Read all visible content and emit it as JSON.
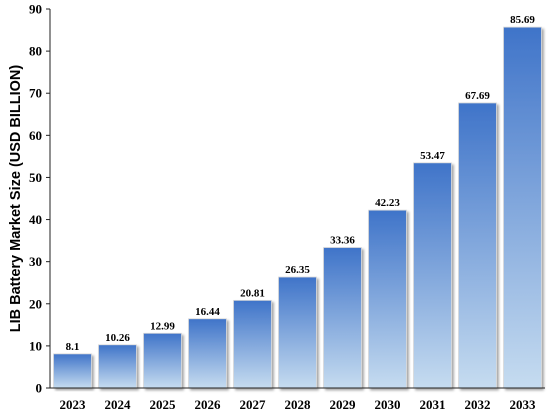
{
  "chart_data": {
    "type": "bar",
    "title": "",
    "xlabel": "",
    "ylabel": "LIB Battery Market Size (USD BILLION)",
    "categories": [
      "2023",
      "2024",
      "2025",
      "2026",
      "2027",
      "2028",
      "2029",
      "2030",
      "2031",
      "2032",
      "2033"
    ],
    "values": [
      8.1,
      10.26,
      12.99,
      16.44,
      20.81,
      26.35,
      33.36,
      42.23,
      53.47,
      67.69,
      85.69
    ],
    "value_labels": [
      "8.1",
      "10.26",
      "12.99",
      "16.44",
      "20.81",
      "26.35",
      "33.36",
      "42.23",
      "53.47",
      "67.69",
      "85.69"
    ],
    "ylim": [
      0,
      90
    ],
    "yticks": [
      0,
      10,
      20,
      30,
      40,
      50,
      60,
      70,
      80,
      90
    ],
    "grid": false,
    "legend": "none",
    "bar_gradient": [
      "#3f74c9",
      "#c6dcf0"
    ]
  }
}
